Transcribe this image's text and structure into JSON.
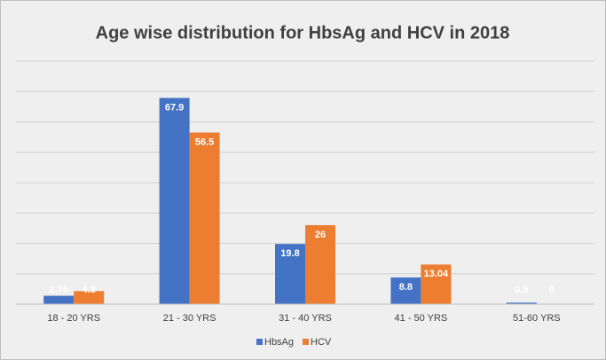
{
  "chart_data": {
    "type": "bar",
    "title": "Age wise distribution for HbsAg and HCV in 2018",
    "categories": [
      "18 - 20 YRS",
      "21 - 30 YRS",
      "31 - 40 YRS",
      "41 - 50 YRS",
      "51-60 YRS"
    ],
    "series": [
      {
        "name": "HbsAg",
        "color": "#4472c4",
        "values": [
          2.76,
          67.9,
          19.8,
          8.8,
          0.5
        ]
      },
      {
        "name": "HCV",
        "color": "#ed7d31",
        "values": [
          4.3,
          56.5,
          26,
          13.04,
          0
        ]
      }
    ],
    "ylim": [
      0,
      80
    ],
    "yticks": [
      0,
      10,
      20,
      30,
      40,
      50,
      60,
      70,
      80
    ],
    "ytick_labels": false,
    "grid": true,
    "legend": "bottom"
  }
}
